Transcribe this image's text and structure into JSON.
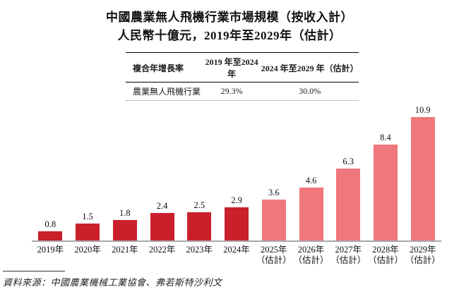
{
  "header": {
    "title": "中國農業無人飛機行業市場規模（按收入計）",
    "subtitle": "人民幣十億元，2019年至2029年（估計）"
  },
  "cagr_table": {
    "header": [
      "複合年增長率",
      "2019 年至2024 年",
      "2024 年至2029 年（估計）"
    ],
    "row": {
      "label": "農業無人飛機行業",
      "cagr_2019_2024": "29.3%",
      "cagr_2024_2029": "30.0%"
    }
  },
  "chart_data": {
    "type": "bar",
    "title": "中國農業無人飛機行業市場規模（按收入計）",
    "subtitle": "人民幣十億元，2019年至2029年（估計）",
    "unit_label": "人民幣十億元",
    "categories": [
      "2019年",
      "2020年",
      "2021年",
      "2022年",
      "2023年",
      "2024年",
      "2025年",
      "2026年",
      "2027年",
      "2028年",
      "2029年"
    ],
    "category_sublabels": [
      "",
      "",
      "",
      "",
      "",
      "",
      "（估計）",
      "（估計）",
      "（估計）",
      "（估計）",
      "（估計）"
    ],
    "values": [
      0.8,
      1.5,
      1.8,
      2.4,
      2.5,
      2.9,
      3.6,
      4.6,
      6.3,
      8.4,
      10.9
    ],
    "value_labels": [
      "0.8",
      "1.5",
      "1.8",
      "2.4",
      "2.5",
      "2.9",
      "3.6",
      "4.6",
      "6.3",
      "8.4",
      "10.9"
    ],
    "estimate_start_index": 6,
    "ylim": [
      0,
      11
    ],
    "grid": false,
    "legend": "none",
    "data_labels": true
  },
  "colors": {
    "bar_actual": "#C9202B",
    "bar_estimate": "#F0787C",
    "axis_line": "#A8A8A8",
    "text": "#1A1A1A"
  },
  "footer": {
    "source": "資料來源：中國農業機械工業協會、弗若斯特沙利文"
  }
}
